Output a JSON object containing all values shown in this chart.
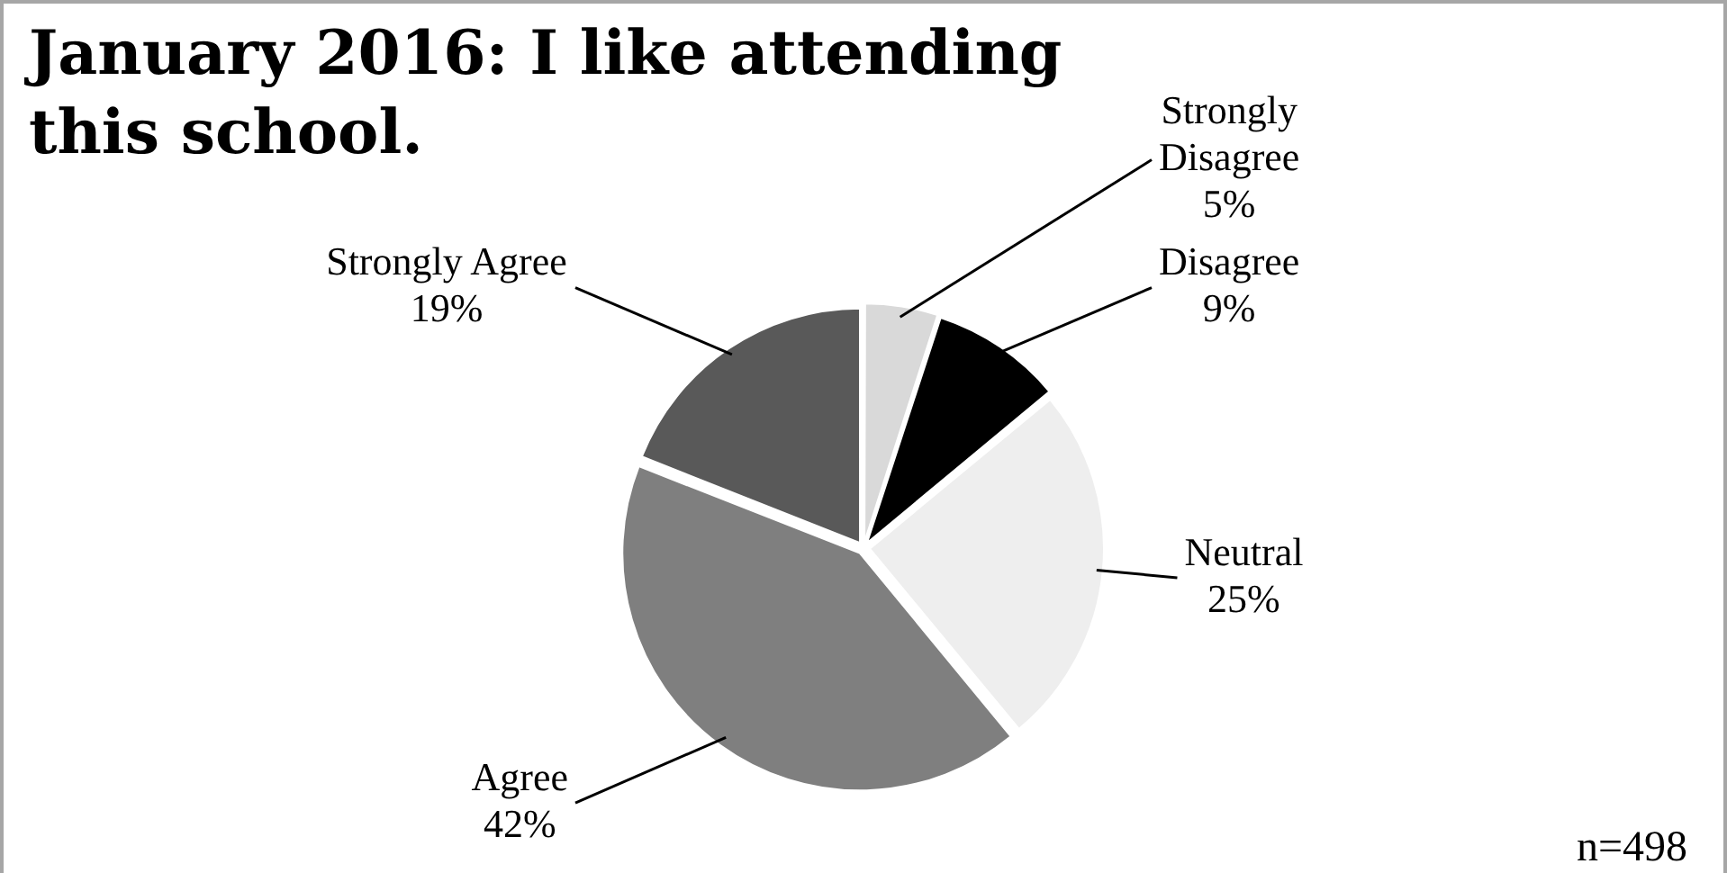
{
  "chart_data": {
    "type": "pie",
    "title": "January 2016: I like attending this school.",
    "categories": [
      "Strongly Disagree",
      "Disagree",
      "Neutral",
      "Agree",
      "Strongly Agree"
    ],
    "values": [
      5,
      9,
      25,
      42,
      19
    ],
    "value_labels": [
      "5%",
      "9%",
      "25%",
      "42%",
      "19%"
    ],
    "colors": [
      "#d9d9d9",
      "#000000",
      "#eeeeee",
      "#7f7f7f",
      "#595959"
    ],
    "annotations": [
      "n=498"
    ],
    "legend": false
  }
}
